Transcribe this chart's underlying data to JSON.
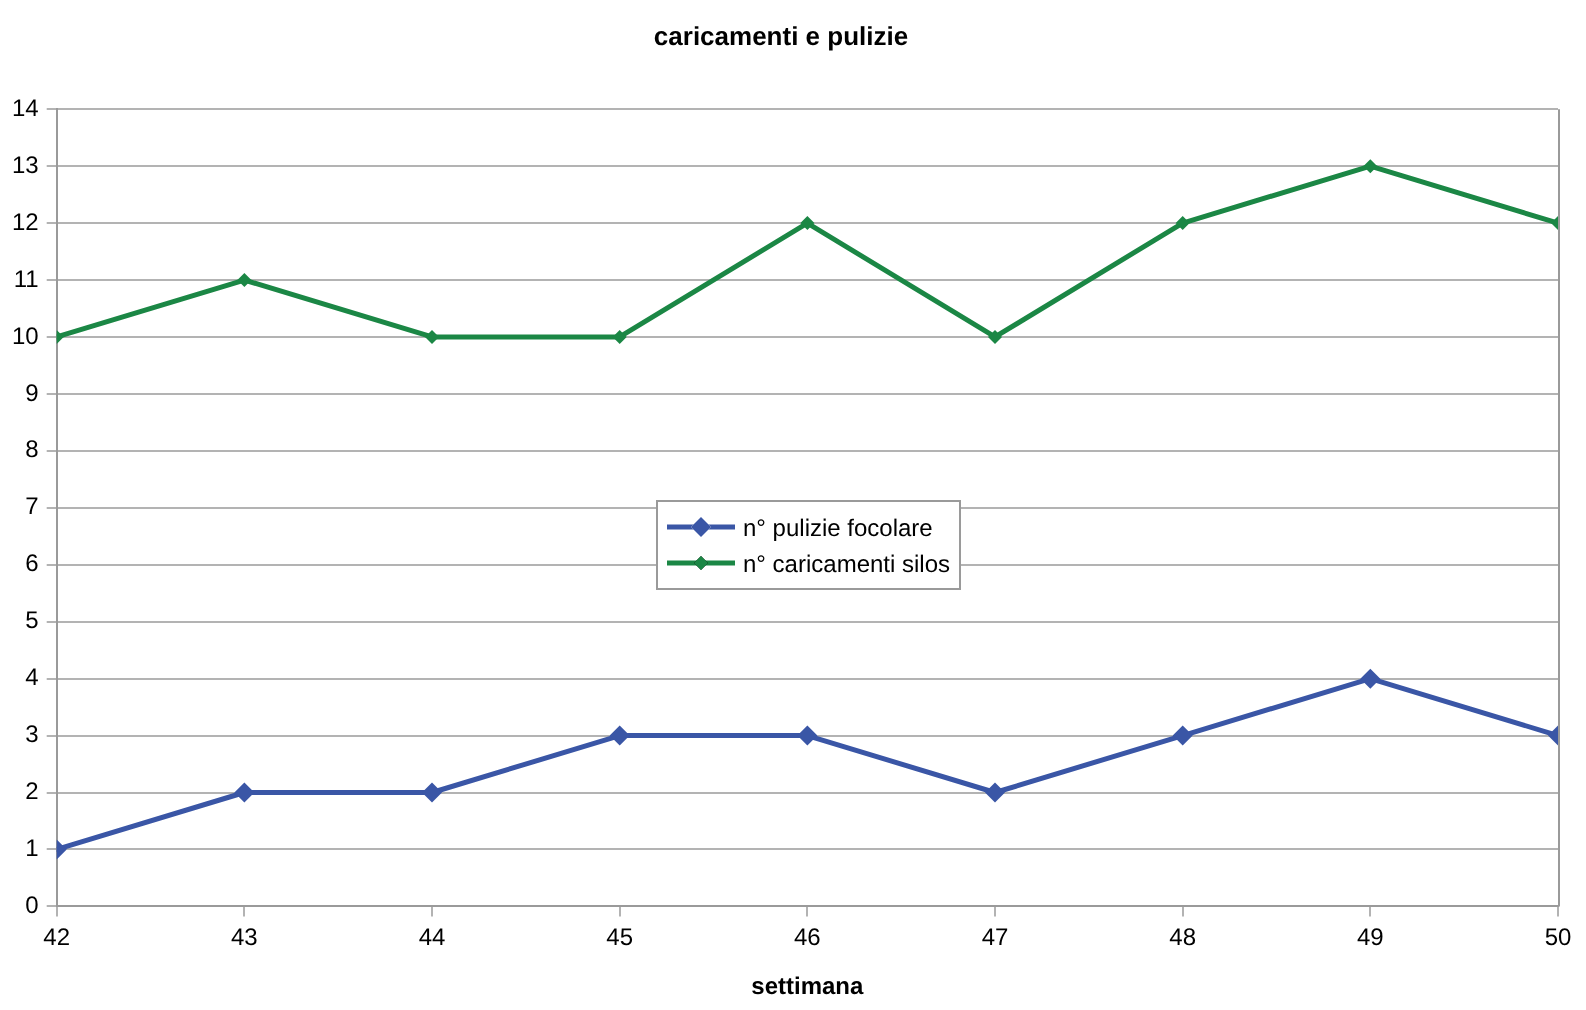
{
  "chart_data": {
    "type": "line",
    "title": "caricamenti e pulizie",
    "xlabel": "settimana",
    "x": [
      42,
      43,
      44,
      45,
      46,
      47,
      48,
      49,
      50
    ],
    "series": [
      {
        "name": "n° pulizie focolare",
        "color": "#3a56a6",
        "values": [
          1,
          2,
          2,
          3,
          3,
          2,
          3,
          4,
          3
        ]
      },
      {
        "name": "n° caricamenti silos",
        "color": "#1b8745",
        "values": [
          10,
          11,
          10,
          10,
          12,
          10,
          12,
          13,
          12
        ]
      }
    ],
    "xlim": [
      42,
      50
    ],
    "xticks": [
      42,
      43,
      44,
      45,
      46,
      47,
      48,
      49,
      50
    ],
    "ylim": [
      0,
      14
    ],
    "yticks": [
      0,
      1,
      2,
      3,
      4,
      5,
      6,
      7,
      8,
      9,
      10,
      11,
      12,
      13,
      14
    ],
    "grid": "y",
    "legend": "center",
    "marker": "diamond",
    "line_style": "solid"
  }
}
